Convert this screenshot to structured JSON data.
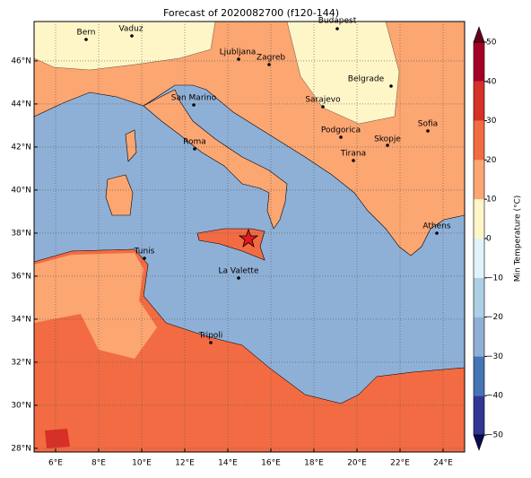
{
  "chart_data": {
    "type": "map",
    "title": "Forecast of 2020082700 (f120-144)",
    "xlim": [
      5,
      25
    ],
    "ylim": [
      27.83,
      47.83
    ],
    "xticks": [
      {
        "value": 6,
        "label": "6°E"
      },
      {
        "value": 8,
        "label": "8°E"
      },
      {
        "value": 10,
        "label": "10°E"
      },
      {
        "value": 12,
        "label": "12°E"
      },
      {
        "value": 14,
        "label": "14°E"
      },
      {
        "value": 16,
        "label": "16°E"
      },
      {
        "value": 18,
        "label": "18°E"
      },
      {
        "value": 20,
        "label": "20°E"
      },
      {
        "value": 22,
        "label": "22°E"
      },
      {
        "value": 24,
        "label": "24°E"
      }
    ],
    "yticks": [
      {
        "value": 28,
        "label": "28°N"
      },
      {
        "value": 30,
        "label": "30°N"
      },
      {
        "value": 32,
        "label": "32°N"
      },
      {
        "value": 34,
        "label": "34°N"
      },
      {
        "value": 36,
        "label": "36°N"
      },
      {
        "value": 38,
        "label": "38°N"
      },
      {
        "value": 40,
        "label": "40°N"
      },
      {
        "value": 42,
        "label": "42°N"
      },
      {
        "value": 44,
        "label": "44°N"
      },
      {
        "value": 46,
        "label": "46°N"
      }
    ],
    "grid": true,
    "cities": [
      "Bern",
      "Vaduz",
      "Budapest",
      "Ljubljana",
      "Zagreb",
      "Belgrade",
      "San Marino",
      "Sarajevo",
      "Sofia",
      "Podgorica",
      "Skopje",
      "Roma",
      "Tirana",
      "Athens",
      "Tunis",
      "La Valette",
      "Tripoli"
    ],
    "colorbar": {
      "label": "Min Temperature (°C)",
      "lim": [
        -50,
        50
      ],
      "ticks": [
        {
          "value": -50,
          "label": "−50"
        },
        {
          "value": -40,
          "label": "−40"
        },
        {
          "value": -30,
          "label": "−30"
        },
        {
          "value": -20,
          "label": "−20"
        },
        {
          "value": -10,
          "label": "−10"
        },
        0,
        10,
        20,
        30,
        40,
        50
      ],
      "colors": [
        "#313695",
        "#4575b4",
        "#8fb0d6",
        "#abd0e6",
        "#e0f3f8",
        "#fff6c8",
        "#fca672",
        "#f26b43",
        "#d73027",
        "#a50026"
      ],
      "extend_colors": [
        "#0a0a50",
        "#67001f"
      ]
    }
  }
}
